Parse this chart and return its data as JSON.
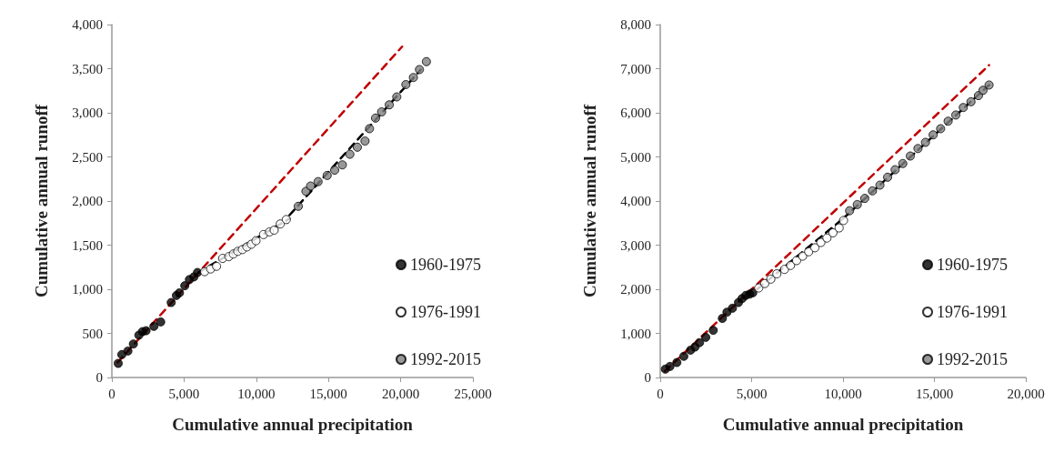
{
  "chart_data": [
    {
      "type": "scatter",
      "xlabel": "Cumulative annual precipitation",
      "ylabel": "Cumulative annual runoff",
      "xlim": [
        0,
        25000
      ],
      "ylim": [
        0,
        4000
      ],
      "xticks": [
        {
          "value": 0,
          "label": "0"
        },
        {
          "value": 5000,
          "label": "5,000"
        },
        {
          "value": 10000,
          "label": "10,000"
        },
        {
          "value": 15000,
          "label": "15,000"
        },
        {
          "value": 20000,
          "label": "20,000"
        },
        {
          "value": 25000,
          "label": "25,000"
        }
      ],
      "yticks": [
        {
          "value": 0,
          "label": "0"
        },
        {
          "value": 500,
          "label": "500"
        },
        {
          "value": 1000,
          "label": "1,000"
        },
        {
          "value": 1500,
          "label": "1,500"
        },
        {
          "value": 2000,
          "label": "2,000"
        },
        {
          "value": 2500,
          "label": "2,500"
        },
        {
          "value": 3000,
          "label": "3,000"
        },
        {
          "value": 3500,
          "label": "3,500"
        },
        {
          "value": 4000,
          "label": "4,000"
        }
      ],
      "grid": false,
      "legend": "bottom right",
      "marker": "circle",
      "series": [
        {
          "type": "line",
          "color": "#c00000",
          "line_style": "dashed",
          "marker": "none",
          "x": [
            400,
            20100
          ],
          "values": [
            170,
            3750
          ]
        },
        {
          "type": "line",
          "color": "#000000",
          "line_style": "dashed",
          "marker": "none",
          "x": [
            6000,
            12300
          ],
          "values": [
            1190,
            1800
          ]
        },
        {
          "type": "line",
          "color": "#000000",
          "line_style": "dashed",
          "marker": "none",
          "x": [
            12300,
            21400
          ],
          "values": [
            1840,
            3490
          ]
        },
        {
          "name": "1960-1975",
          "color": "#000000",
          "x": [
            440,
            690,
            1110,
            1490,
            1870,
            2120,
            2370,
            2910,
            3380,
            4110,
            4470,
            4680,
            5050,
            5370,
            5680,
            5930
          ],
          "values": [
            160,
            260,
            300,
            380,
            480,
            520,
            530,
            580,
            630,
            850,
            930,
            960,
            1040,
            1110,
            1140,
            1190
          ]
        },
        {
          "name": "1976-1991",
          "color": "#ffffff",
          "x": [
            6420,
            6840,
            7250,
            7670,
            8100,
            8410,
            8720,
            9040,
            9350,
            9660,
            9980,
            10500,
            10920,
            11240,
            11660,
            12080
          ],
          "values": [
            1200,
            1230,
            1260,
            1350,
            1370,
            1400,
            1430,
            1450,
            1480,
            1510,
            1550,
            1620,
            1650,
            1670,
            1740,
            1790
          ]
        },
        {
          "name": "1992-2015",
          "color": "#808080",
          "x": [
            12910,
            13440,
            13760,
            14280,
            14910,
            15430,
            15960,
            16480,
            17000,
            17530,
            17840,
            18260,
            18680,
            19210,
            19730,
            20360,
            20880,
            21300,
            21780
          ],
          "values": [
            1940,
            2110,
            2170,
            2220,
            2290,
            2350,
            2410,
            2530,
            2610,
            2680,
            2820,
            2940,
            3010,
            3090,
            3180,
            3320,
            3400,
            3490,
            3580
          ]
        }
      ]
    },
    {
      "type": "scatter",
      "xlabel": "Cumulative annual precipitation",
      "ylabel": "Cumulative annual runoff",
      "xlim": [
        0,
        20000
      ],
      "ylim": [
        0,
        8000
      ],
      "xticks": [
        {
          "value": 0,
          "label": "0"
        },
        {
          "value": 5000,
          "label": "5,000"
        },
        {
          "value": 10000,
          "label": "10,000"
        },
        {
          "value": 15000,
          "label": "15,000"
        },
        {
          "value": 20000,
          "label": "20,000"
        }
      ],
      "yticks": [
        {
          "value": 0,
          "label": "0"
        },
        {
          "value": 1000,
          "label": "1,000"
        },
        {
          "value": 2000,
          "label": "2,000"
        },
        {
          "value": 3000,
          "label": "3,000"
        },
        {
          "value": 4000,
          "label": "4,000"
        },
        {
          "value": 5000,
          "label": "5,000"
        },
        {
          "value": 6000,
          "label": "6,000"
        },
        {
          "value": 7000,
          "label": "7,000"
        },
        {
          "value": 8000,
          "label": "8,000"
        }
      ],
      "grid": false,
      "legend": "bottom right",
      "marker": "circle",
      "series": [
        {
          "type": "line",
          "color": "#c00000",
          "line_style": "dashed",
          "marker": "none",
          "x": [
            250,
            17990
          ],
          "values": [
            140,
            7080
          ]
        },
        {
          "type": "line",
          "color": "#000000",
          "line_style": "dashed",
          "marker": "none",
          "x": [
            5300,
            10000
          ],
          "values": [
            2000,
            3600
          ]
        },
        {
          "type": "line",
          "color": "#000000",
          "line_style": "dashed",
          "marker": "none",
          "x": [
            10000,
            17990
          ],
          "values": [
            3600,
            6630
          ]
        },
        {
          "name": "1960-1975",
          "color": "#000000",
          "x": [
            280,
            530,
            910,
            1290,
            1660,
            1900,
            2150,
            2490,
            2900,
            3400,
            3650,
            3950,
            4280,
            4480,
            4680,
            4890,
            5060
          ],
          "values": [
            190,
            250,
            340,
            480,
            620,
            690,
            790,
            910,
            1070,
            1340,
            1480,
            1570,
            1700,
            1790,
            1860,
            1890,
            1920
          ]
        },
        {
          "name": "1976-1991",
          "color": "#ffffff",
          "x": [
            5390,
            5720,
            6050,
            6380,
            6800,
            7130,
            7460,
            7790,
            8120,
            8460,
            8790,
            9120,
            9450,
            9790,
            10030
          ],
          "values": [
            2030,
            2130,
            2230,
            2350,
            2450,
            2540,
            2650,
            2750,
            2850,
            2940,
            3060,
            3160,
            3280,
            3390,
            3560
          ]
        },
        {
          "name": "1992-2015",
          "color": "#808080",
          "x": [
            10360,
            10780,
            11190,
            11610,
            12020,
            12440,
            12850,
            13270,
            13680,
            14100,
            14510,
            14930,
            15340,
            15750,
            16170,
            16580,
            17000,
            17410,
            17660,
            17990
          ],
          "values": [
            3780,
            3920,
            4060,
            4230,
            4360,
            4540,
            4710,
            4850,
            5020,
            5190,
            5330,
            5500,
            5640,
            5810,
            5950,
            6120,
            6250,
            6390,
            6510,
            6630
          ]
        }
      ]
    }
  ]
}
